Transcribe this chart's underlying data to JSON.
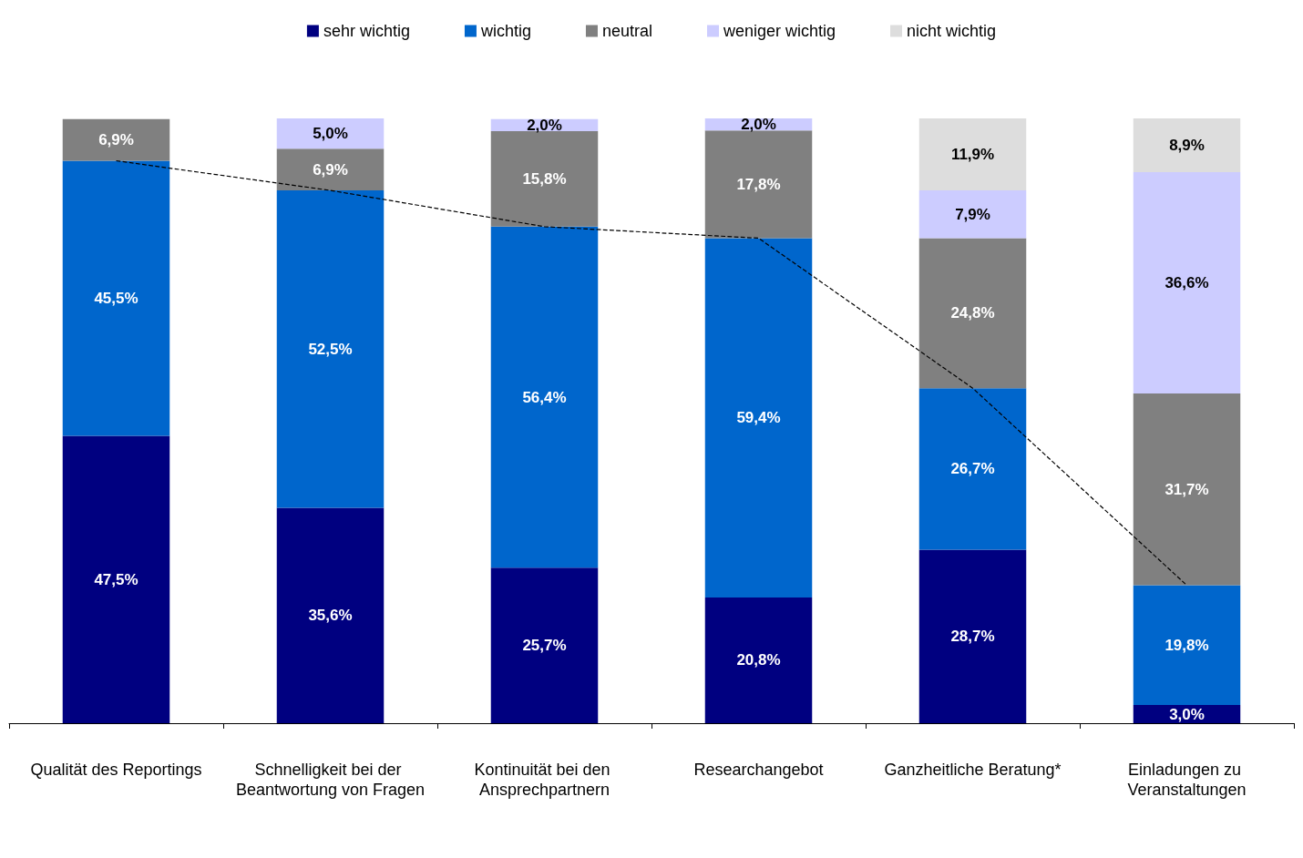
{
  "chart_data": {
    "type": "bar",
    "stacked": true,
    "legend": "top",
    "grid": false,
    "tick_labels": "x",
    "categories": [
      "Qualität des Reportings",
      "Schnelligkeit bei der Beantwortung von Fragen",
      "Kontinuität bei den Ansprechpartnern",
      "Researchangebot",
      "Ganzheitliche Beratung*",
      "Einladungen zu Veranstaltungen"
    ],
    "series": [
      {
        "name": "sehr wichtig",
        "color": "#000080",
        "values": [
          47.5,
          35.6,
          25.7,
          20.8,
          28.7,
          3.0
        ],
        "value_labels": [
          "47,5%",
          "35,6%",
          "25,7%",
          "20,8%",
          "28,7%",
          "3,0%"
        ]
      },
      {
        "name": "wichtig",
        "color": "#0066cc",
        "values": [
          45.5,
          52.5,
          56.4,
          59.4,
          26.7,
          19.8
        ],
        "value_labels": [
          "45,5%",
          "52,5%",
          "56,4%",
          "59,4%",
          "26,7%",
          "19,8%"
        ]
      },
      {
        "name": "neutral",
        "color": "#808080",
        "values": [
          6.9,
          6.9,
          15.8,
          17.8,
          24.8,
          31.7
        ],
        "value_labels": [
          "6,9%",
          "6,9%",
          "15,8%",
          "17,8%",
          "24,8%",
          "31,7%"
        ]
      },
      {
        "name": "weniger wichtig",
        "color": "#ccccff",
        "values": [
          null,
          5.0,
          2.0,
          2.0,
          7.9,
          36.6
        ],
        "value_labels": [
          null,
          "5,0%",
          "2,0%",
          "2,0%",
          "7,9%",
          "36,6%"
        ]
      },
      {
        "name": "nicht wichtig",
        "color": "#dddddd",
        "values": [
          null,
          null,
          null,
          null,
          11.9,
          8.9
        ],
        "value_labels": [
          null,
          null,
          null,
          null,
          "11,9%",
          "8,9%"
        ]
      },
      {
        "type": "line",
        "color": "#000000",
        "line_style": "dashed",
        "marker": "none",
        "values": [
          93.0,
          88.1,
          82.1,
          80.2,
          55.4,
          22.8
        ]
      }
    ]
  }
}
